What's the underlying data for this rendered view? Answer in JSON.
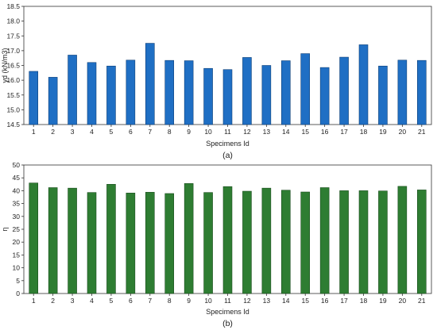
{
  "colors": {
    "bar_a": "#1f6fc4",
    "bar_a_edge": "#0d3f78",
    "bar_b": "#2e7d32",
    "bar_b_edge": "#1b4d1e",
    "axis": "#333333"
  },
  "chart_data": [
    {
      "type": "bar",
      "caption": "(a)",
      "xlabel": "Specimens Id",
      "ylabel": "γd (kN/m3)",
      "ylim": [
        14.5,
        18.5
      ],
      "yticks": [
        14.5,
        15.0,
        15.5,
        16.0,
        16.5,
        17.0,
        17.5,
        18.0,
        18.5
      ],
      "ytick_labels": [
        "14.5",
        "15.0",
        "15.5",
        "16.0",
        "16.5",
        "17.0",
        "17.5",
        "18.0",
        "18.5"
      ],
      "categories": [
        "1",
        "2",
        "3",
        "4",
        "5",
        "6",
        "7",
        "8",
        "9",
        "10",
        "11",
        "12",
        "13",
        "14",
        "15",
        "16",
        "17",
        "18",
        "19",
        "20",
        "21"
      ],
      "values": [
        16.3,
        16.1,
        16.85,
        16.6,
        16.48,
        16.68,
        17.25,
        16.67,
        16.66,
        16.4,
        16.36,
        16.77,
        16.5,
        16.66,
        16.9,
        16.43,
        16.78,
        17.2,
        16.48,
        16.68,
        16.67
      ],
      "grid": false
    },
    {
      "type": "bar",
      "caption": "(b)",
      "xlabel": "Specimens Id",
      "ylabel": "η",
      "ylim": [
        0,
        50
      ],
      "yticks": [
        0,
        5,
        10,
        15,
        20,
        25,
        30,
        35,
        40,
        45,
        50
      ],
      "ytick_labels": [
        "0",
        "5",
        "10",
        "15",
        "20",
        "25",
        "30",
        "35",
        "40",
        "45",
        "50"
      ],
      "categories": [
        "1",
        "2",
        "3",
        "4",
        "5",
        "6",
        "7",
        "8",
        "9",
        "10",
        "11",
        "12",
        "13",
        "14",
        "15",
        "16",
        "17",
        "18",
        "19",
        "20",
        "21"
      ],
      "values": [
        43.0,
        41.2,
        41.0,
        39.3,
        42.5,
        39.1,
        39.4,
        38.9,
        42.8,
        39.3,
        41.6,
        39.8,
        41.0,
        40.2,
        39.5,
        41.2,
        40.0,
        40.0,
        39.9,
        41.7,
        40.3
      ],
      "grid": false
    }
  ]
}
